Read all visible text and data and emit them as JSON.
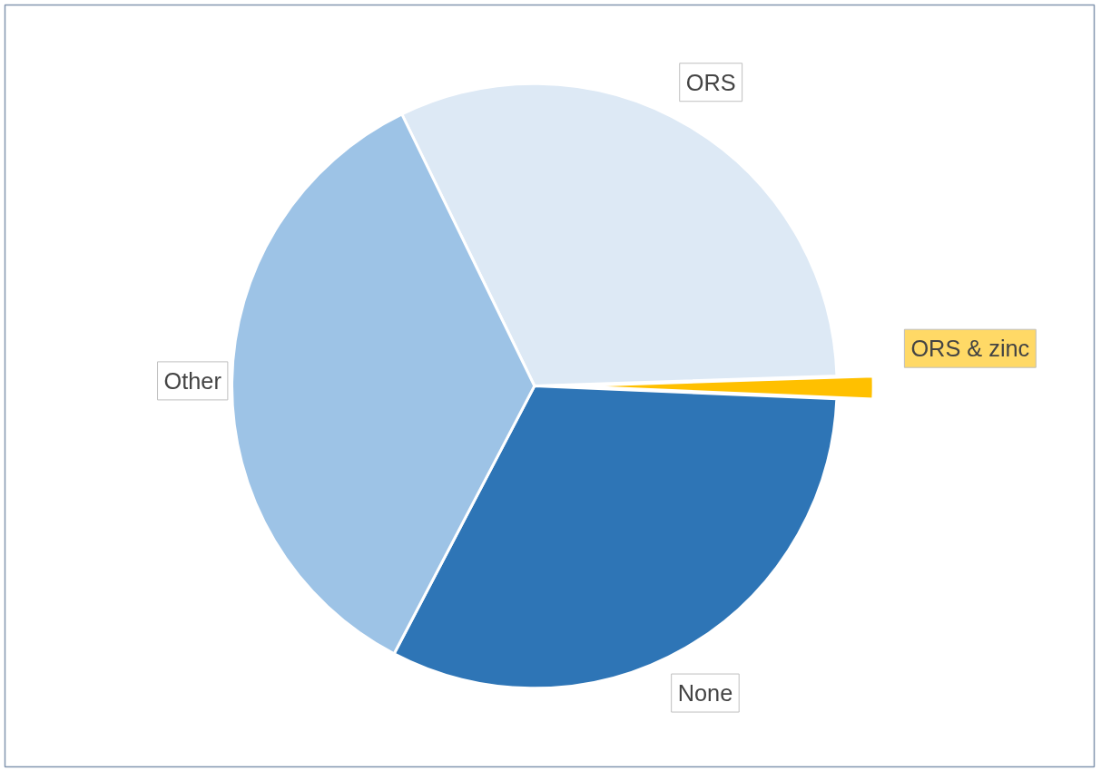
{
  "chart_data": {
    "type": "pie",
    "categories": [
      "ORS",
      "ORS & zinc",
      "None",
      "Other"
    ],
    "values": [
      31.7,
      1.2,
      32,
      35.1
    ],
    "colors": [
      "#dde9f5",
      "#ffc000",
      "#2e75b6",
      "#9dc3e6"
    ]
  }
}
